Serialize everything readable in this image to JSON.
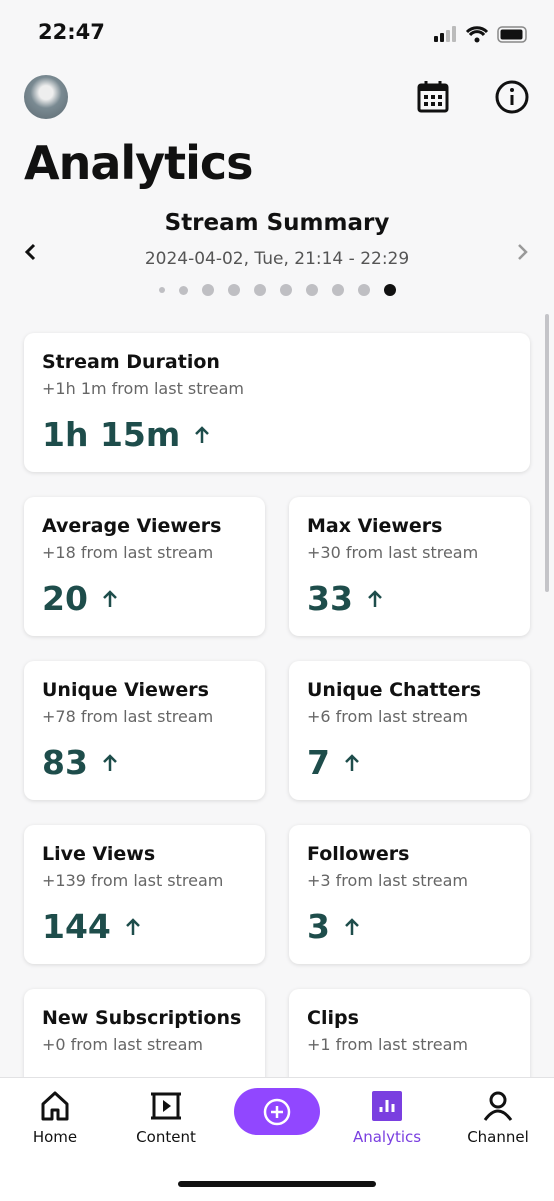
{
  "status_bar": {
    "time": "22:47"
  },
  "header": {
    "title": "Analytics"
  },
  "summary": {
    "title": "Stream Summary",
    "date": "2024-04-02, Tue, 21:14 - 22:29"
  },
  "cards": [
    {
      "title": "Stream Duration",
      "delta": "+1h 1m from last stream",
      "value": "1h 15m"
    },
    {
      "title": "Average Viewers",
      "delta": "+18 from last stream",
      "value": "20"
    },
    {
      "title": "Max Viewers",
      "delta": "+30 from last stream",
      "value": "33"
    },
    {
      "title": "Unique Viewers",
      "delta": "+78 from last stream",
      "value": "83"
    },
    {
      "title": "Unique Chatters",
      "delta": "+6 from last stream",
      "value": "7"
    },
    {
      "title": "Live Views",
      "delta": "+139 from last stream",
      "value": "144"
    },
    {
      "title": "Followers",
      "delta": "+3 from last stream",
      "value": "3"
    },
    {
      "title": "New Subscriptions",
      "delta": "+0 from last stream"
    },
    {
      "title": "Clips",
      "delta": "+1 from last stream"
    }
  ],
  "tab_bar": {
    "tabs": [
      "Home",
      "Content",
      "Analytics",
      "Channel"
    ]
  }
}
